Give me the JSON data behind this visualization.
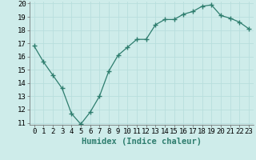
{
  "x": [
    0,
    1,
    2,
    3,
    4,
    5,
    6,
    7,
    8,
    9,
    10,
    11,
    12,
    13,
    14,
    15,
    16,
    17,
    18,
    19,
    20,
    21,
    22,
    23
  ],
  "y": [
    16.8,
    15.6,
    14.6,
    13.6,
    11.7,
    10.9,
    11.8,
    13.0,
    14.9,
    16.1,
    16.7,
    17.3,
    17.3,
    18.4,
    18.8,
    18.8,
    19.2,
    19.4,
    19.8,
    19.9,
    19.1,
    18.9,
    18.6,
    18.1
  ],
  "line_color": "#2e7d6e",
  "marker": "+",
  "marker_size": 4,
  "marker_linewidth": 1.0,
  "bg_color": "#ceecea",
  "grid_color": "#b8dedd",
  "xlabel": "Humidex (Indice chaleur)",
  "ylim": [
    11,
    20
  ],
  "xlim": [
    -0.5,
    23.5
  ],
  "yticks": [
    11,
    12,
    13,
    14,
    15,
    16,
    17,
    18,
    19,
    20
  ],
  "xticks": [
    0,
    1,
    2,
    3,
    4,
    5,
    6,
    7,
    8,
    9,
    10,
    11,
    12,
    13,
    14,
    15,
    16,
    17,
    18,
    19,
    20,
    21,
    22,
    23
  ],
  "tick_label_fontsize": 6.5,
  "xlabel_fontsize": 7.5
}
